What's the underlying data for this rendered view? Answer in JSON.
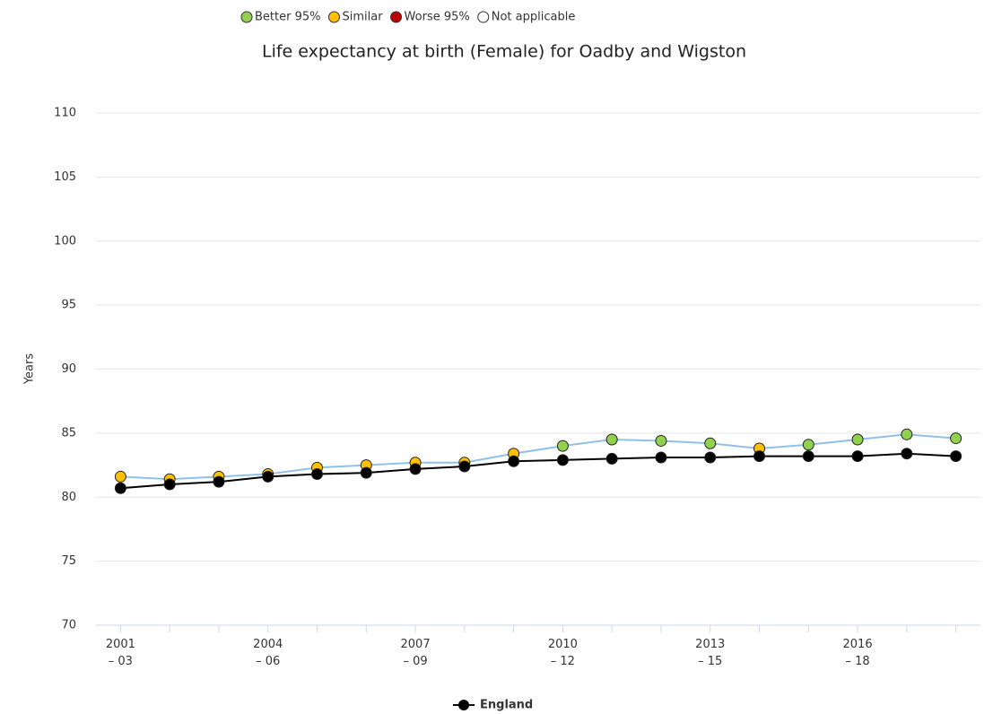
{
  "chart_data": {
    "type": "line",
    "title": "Life expectancy at birth (Female) for Oadby and Wigston",
    "y_label": "Years",
    "significance_legend": [
      {
        "name": "Better 95%",
        "color": "#92d050"
      },
      {
        "name": "Similar",
        "color": "#ffc000"
      },
      {
        "name": "Worse 95%",
        "color": "#c00000"
      },
      {
        "name": "Not applicable",
        "color": "#ffffff"
      }
    ],
    "categories": [
      "2001 – 03",
      null,
      null,
      "2004 – 06",
      null,
      null,
      "2007 – 09",
      null,
      null,
      "2010 – 12",
      null,
      null,
      "2013 – 15",
      null,
      null,
      "2016 – 18",
      null,
      null
    ],
    "series": [
      {
        "color": "#90c0ea",
        "marker_colors": [
          "#ffc000",
          "#ffc000",
          "#ffc000",
          "#ffc000",
          "#ffc000",
          "#ffc000",
          "#ffc000",
          "#ffc000",
          "#ffc000",
          "#92d050",
          "#92d050",
          "#92d050",
          "#92d050",
          "#ffc000",
          "#92d050",
          "#92d050",
          "#92d050",
          "#92d050"
        ],
        "values": [
          81.6,
          81.4,
          81.6,
          81.8,
          82.3,
          82.5,
          82.7,
          82.7,
          83.4,
          84.0,
          84.5,
          84.4,
          84.2,
          83.8,
          84.1,
          84.5,
          84.9,
          84.6
        ]
      },
      {
        "name": "England",
        "color": "#000000",
        "values": [
          80.7,
          81.0,
          81.2,
          81.6,
          81.8,
          81.9,
          82.2,
          82.4,
          82.8,
          82.9,
          83.0,
          83.1,
          83.1,
          83.2,
          83.2,
          83.2,
          83.4,
          83.2
        ]
      }
    ],
    "ylim": [
      70,
      110
    ],
    "yticks": [
      70,
      75,
      80,
      85,
      90,
      95,
      100,
      105,
      110
    ],
    "grid": true
  }
}
